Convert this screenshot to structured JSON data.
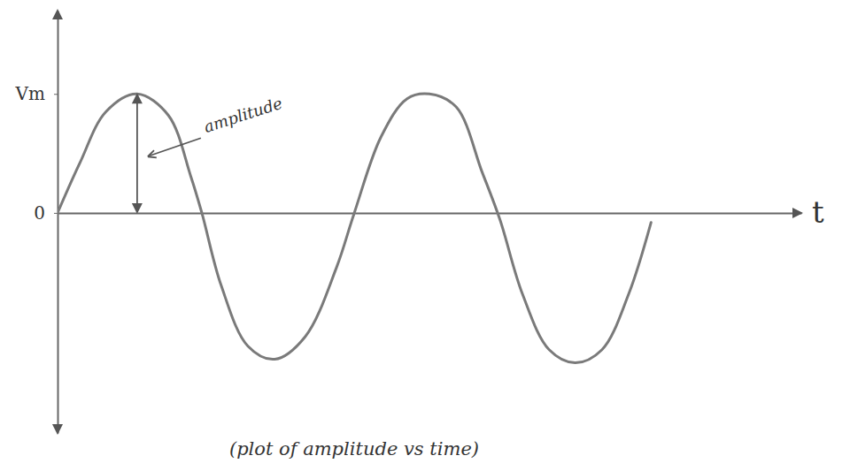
{
  "chart_data": {
    "type": "line",
    "caption": "(plot of amplitude vs time)",
    "x_label": "t",
    "annotation": "amplitude",
    "color": "#7a7a7a",
    "x": [
      0,
      0.3,
      0.65,
      1.07,
      1.49,
      1.79,
      1.94,
      2.2,
      2.56,
      2.92,
      3.33,
      3.75,
      3.99,
      4.35,
      4.7,
      5.0,
      5.36,
      5.71,
      5.95,
      6.25,
      6.61,
      6.96,
      7.32,
      7.68,
      7.98
    ],
    "values": [
      0,
      0.42,
      0.85,
      1.0,
      0.82,
      0.31,
      0,
      -0.61,
      -1.12,
      -1.23,
      -1.04,
      -0.46,
      0,
      0.64,
      0.96,
      1.0,
      0.89,
      0.34,
      -0.06,
      -0.68,
      -1.15,
      -1.26,
      -1.15,
      -0.68,
      -0.08
    ],
    "xlim": [
      0,
      10
    ],
    "xticks": [],
    "ylim": [
      -1.85,
      1.7
    ],
    "yticks": [
      0,
      {
        "value": 1,
        "label": "Vm"
      }
    ],
    "tick_labels": "y",
    "grid": false
  }
}
